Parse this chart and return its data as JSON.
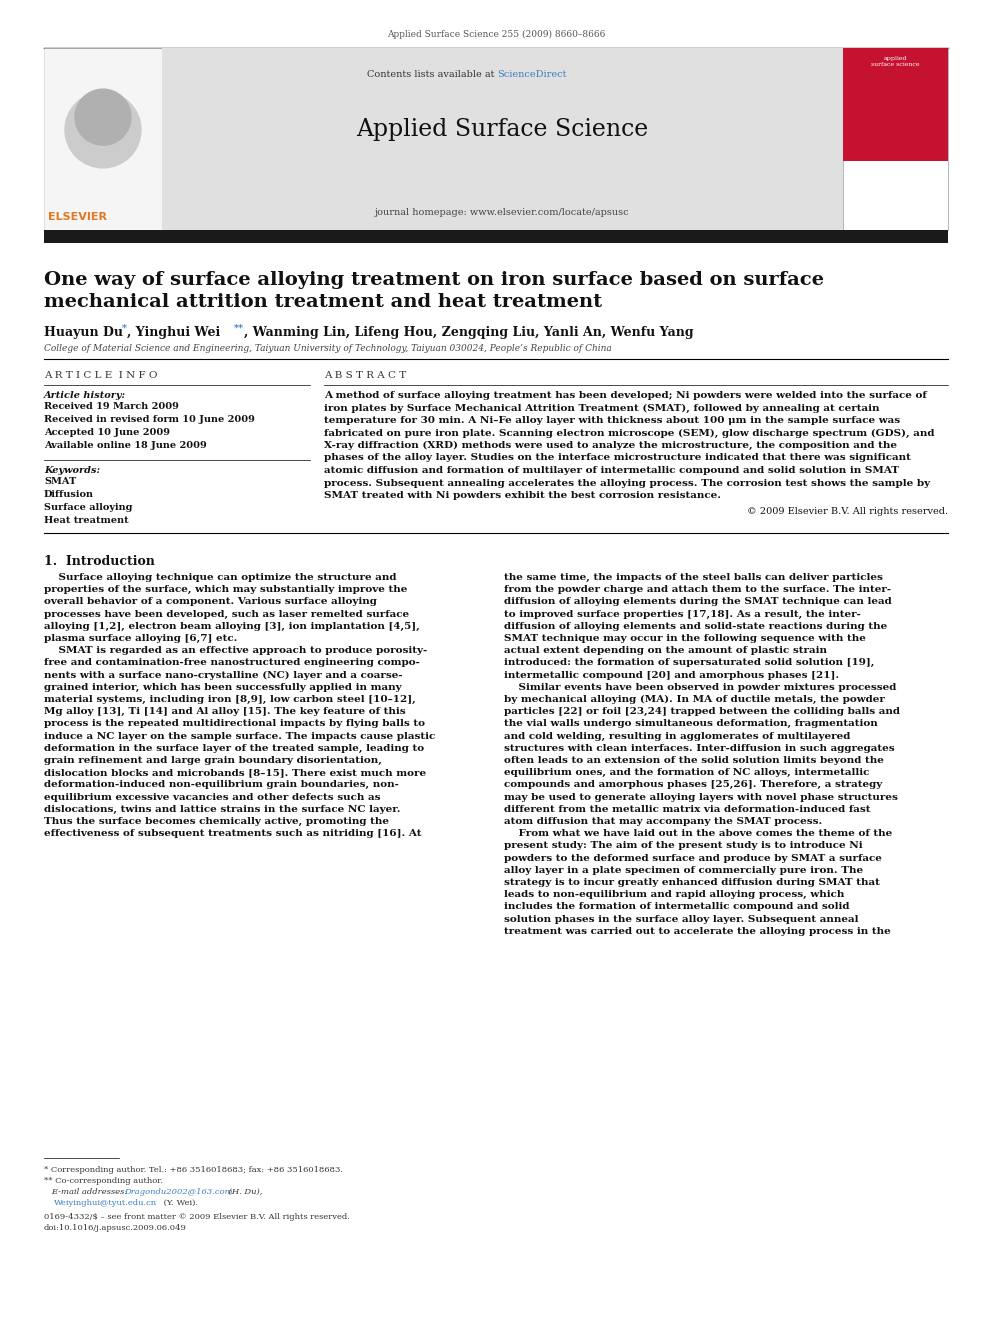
{
  "page_width": 9.92,
  "page_height": 13.23,
  "dpi": 100,
  "bg_color": "#ffffff",
  "journal_ref": "Applied Surface Science 255 (2009) 8660–8666",
  "header_bg": "#e0e0e0",
  "header_sciencedirect_color": "#3a7ebf",
  "header_journal": "Applied Surface Science",
  "header_homepage": "journal homepage: www.elsevier.com/locate/apsusc",
  "black_bar_color": "#1a1a1a",
  "article_title_line1": "One way of surface alloying treatment on iron surface based on surface",
  "article_title_line2": "mechanical attrition treatment and heat treatment",
  "affiliation": "College of Material Science and Engineering, Taiyuan University of Technology, Taiyuan 030024, People’s Republic of China",
  "article_info_title": "A R T I C L E  I N F O",
  "article_history_label": "Article history:",
  "received1": "Received 19 March 2009",
  "received2": "Received in revised form 10 June 2009",
  "accepted": "Accepted 10 June 2009",
  "available": "Available online 18 June 2009",
  "keywords_label": "Keywords:",
  "keywords": [
    "SMAT",
    "Diffusion",
    "Surface alloying",
    "Heat treatment"
  ],
  "abstract_title": "A B S T R A C T",
  "abstract_lines": [
    "A method of surface alloying treatment has been developed; Ni powders were welded into the surface of",
    "iron plates by Surface Mechanical Attrition Treatment (SMAT), followed by annealing at certain",
    "temperature for 30 min. A Ni–Fe alloy layer with thickness about 100 μm in the sample surface was",
    "fabricated on pure iron plate. Scanning electron microscope (SEM), glow discharge spectrum (GDS), and",
    "X-ray diffraction (XRD) methods were used to analyze the microstructure, the composition and the",
    "phases of the alloy layer. Studies on the interface microstructure indicated that there was significant",
    "atomic diffusion and formation of multilayer of intermetallic compound and solid solution in SMAT",
    "process. Subsequent annealing accelerates the alloying process. The corrosion test shows the sample by",
    "SMAT treated with Ni powders exhibit the best corrosion resistance."
  ],
  "copyright": "© 2009 Elsevier B.V. All rights reserved.",
  "section1_title": "1.  Introduction",
  "left_col_lines": [
    "    Surface alloying technique can optimize the structure and",
    "properties of the surface, which may substantially improve the",
    "overall behavior of a component. Various surface alloying",
    "processes have been developed, such as laser remelted surface",
    "alloying [1,2], electron beam alloying [3], ion implantation [4,5],",
    "plasma surface alloying [6,7] etc.",
    "    SMAT is regarded as an effective approach to produce porosity-",
    "free and contamination-free nanostructured engineering compo-",
    "nents with a surface nano-crystalline (NC) layer and a coarse-",
    "grained interior, which has been successfully applied in many",
    "material systems, including iron [8,9], low carbon steel [10–12],",
    "Mg alloy [13], Ti [14] and Al alloy [15]. The key feature of this",
    "process is the repeated multidirectional impacts by flying balls to",
    "induce a NC layer on the sample surface. The impacts cause plastic",
    "deformation in the surface layer of the treated sample, leading to",
    "grain refinement and large grain boundary disorientation,",
    "dislocation blocks and microbands [8–15]. There exist much more",
    "deformation-induced non-equilibrium grain boundaries, non-",
    "equilibrium excessive vacancies and other defects such as",
    "dislocations, twins and lattice strains in the surface NC layer.",
    "Thus the surface becomes chemically active, promoting the",
    "effectiveness of subsequent treatments such as nitriding [16]. At"
  ],
  "right_col_lines": [
    "the same time, the impacts of the steel balls can deliver particles",
    "from the powder charge and attach them to the surface. The inter-",
    "diffusion of alloying elements during the SMAT technique can lead",
    "to improved surface properties [17,18]. As a result, the inter-",
    "diffusion of alloying elements and solid-state reactions during the",
    "SMAT technique may occur in the following sequence with the",
    "actual extent depending on the amount of plastic strain",
    "introduced: the formation of supersaturated solid solution [19],",
    "intermetallic compound [20] and amorphous phases [21].",
    "    Similar events have been observed in powder mixtures processed",
    "by mechanical alloying (MA). In MA of ductile metals, the powder",
    "particles [22] or foil [23,24] trapped between the colliding balls and",
    "the vial walls undergo simultaneous deformation, fragmentation",
    "and cold welding, resulting in agglomerates of multilayered",
    "structures with clean interfaces. Inter-diffusion in such aggregates",
    "often leads to an extension of the solid solution limits beyond the",
    "equilibrium ones, and the formation of NC alloys, intermetallic",
    "compounds and amorphous phases [25,26]. Therefore, a strategy",
    "may be used to generate alloying layers with novel phase structures",
    "different from the metallic matrix via deformation-induced fast",
    "atom diffusion that may accompany the SMAT process.",
    "    From what we have laid out in the above comes the theme of the",
    "present study: The aim of the present study is to introduce Ni",
    "powders to the deformed surface and produce by SMAT a surface",
    "alloy layer in a plate specimen of commercially pure iron. The",
    "strategy is to incur greatly enhanced diffusion during SMAT that",
    "leads to non-equilibrium and rapid alloying process, which",
    "includes the formation of intermetallic compound and solid",
    "solution phases in the surface alloy layer. Subsequent anneal",
    "treatment was carried out to accelerate the alloying process in the"
  ],
  "footer_note1": "* Corresponding author. Tel.: +86 3516018683; fax: +86 3516018683.",
  "footer_note2": "** Co-corresponding author.",
  "footer_email_pre": "   E-mail addresses: ",
  "footer_email1": "Dragondu2002@163.com",
  "footer_email_mid": " (H. Du),",
  "footer_email2": "Weiyinghui@tyut.edu.cn",
  "footer_email_post": " (Y. Wei).",
  "footer_issn": "0169-4332/$ – see front matter © 2009 Elsevier B.V. All rights reserved.",
  "footer_doi": "doi:10.1016/j.apsusc.2009.06.049",
  "link_color": "#3a7ebf",
  "text_color": "#111111",
  "gray_color": "#444444"
}
